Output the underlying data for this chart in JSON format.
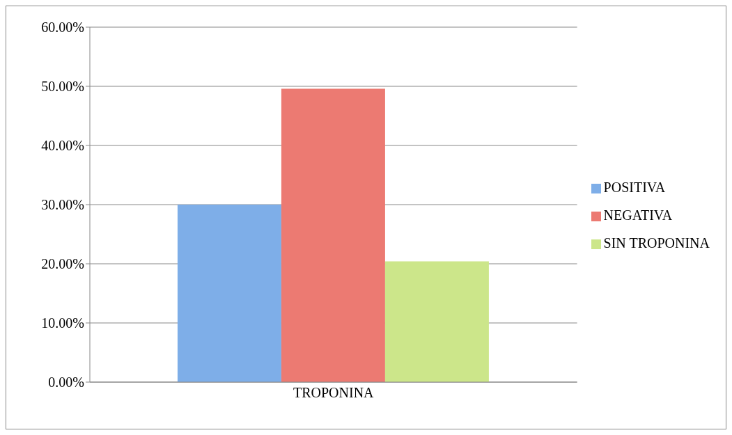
{
  "chart_data": {
    "type": "bar",
    "categories": [
      "TROPONINA"
    ],
    "series": [
      {
        "name": "POSITIVA",
        "color": "#7eaee8",
        "values": [
          30.0
        ]
      },
      {
        "name": "NEGATIVA",
        "color": "#ec7a72",
        "values": [
          49.6
        ]
      },
      {
        "name": "SIN TROPONINA",
        "color": "#cce68a",
        "values": [
          20.4
        ]
      }
    ],
    "ylim": [
      0,
      60
    ],
    "yticks": [
      {
        "value": 0,
        "label": "0.00%"
      },
      {
        "value": 10,
        "label": "10.00%"
      },
      {
        "value": 20,
        "label": "20.00%"
      },
      {
        "value": 30,
        "label": "30.00%"
      },
      {
        "value": 40,
        "label": "40.00%"
      },
      {
        "value": 50,
        "label": "50.00%"
      },
      {
        "value": 60,
        "label": "60.00%"
      }
    ],
    "grid": "y",
    "legend": "right"
  }
}
